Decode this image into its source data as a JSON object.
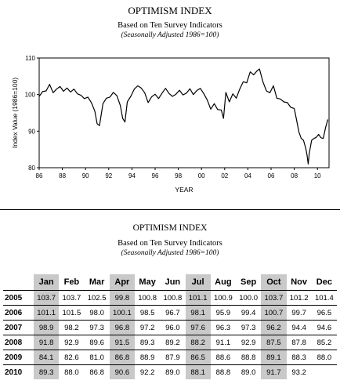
{
  "chart_title": "OPTIMISM INDEX",
  "chart_subtitle": "Based on Ten Survey Indicators",
  "chart_note": "(Seasonally Adjusted 1986=100)",
  "chart_data": {
    "type": "line",
    "xlabel": "YEAR",
    "ylabel": "Index Value (1986=100)",
    "xlim": [
      1986,
      2011
    ],
    "ylim": [
      80,
      110
    ],
    "x_ticks": [
      "86",
      "88",
      "90",
      "92",
      "94",
      "96",
      "98",
      "00",
      "02",
      "04",
      "06",
      "08",
      "10"
    ],
    "y_ticks": [
      "80",
      "90",
      "100",
      "110"
    ],
    "grid": false,
    "series": [
      {
        "x": [
          1986.0,
          1986.3,
          1986.6,
          1986.9,
          1987.2,
          1987.5,
          1987.8,
          1988.1,
          1988.4,
          1988.7,
          1989.0,
          1989.3,
          1989.6,
          1989.9,
          1990.2,
          1990.5,
          1990.8,
          1991.0,
          1991.2,
          1991.5,
          1991.8,
          1992.1,
          1992.4,
          1992.7,
          1993.0,
          1993.2,
          1993.4,
          1993.6,
          1993.9,
          1994.2,
          1994.5,
          1994.8,
          1995.1,
          1995.4,
          1995.7,
          1996.0,
          1996.3,
          1996.6,
          1996.9,
          1997.2,
          1997.5,
          1997.8,
          1998.1,
          1998.4,
          1998.7,
          1999.0,
          1999.3,
          1999.6,
          1999.9,
          2000.2,
          2000.5,
          2000.8,
          2001.1,
          2001.4,
          2001.7,
          2001.9,
          2002.1,
          2002.4,
          2002.7,
          2003.0,
          2003.3,
          2003.6,
          2003.9,
          2004.2,
          2004.5,
          2004.8,
          2005.0,
          2005.3,
          2005.6,
          2005.9,
          2006.2,
          2006.5,
          2006.8,
          2007.1,
          2007.4,
          2007.7,
          2008.0,
          2008.2,
          2008.4,
          2008.6,
          2008.8,
          2009.0,
          2009.1,
          2009.2,
          2009.3,
          2009.5,
          2009.7,
          2009.9,
          2010.1,
          2010.3,
          2010.5,
          2010.7,
          2010.9
        ],
        "y": [
          99.5,
          100.8,
          101.0,
          102.8,
          100.5,
          101.5,
          102.2,
          100.9,
          101.8,
          100.7,
          101.5,
          100.2,
          99.8,
          98.9,
          99.3,
          97.8,
          95.5,
          92.0,
          91.5,
          97.5,
          99.0,
          99.3,
          100.6,
          99.7,
          97.0,
          93.5,
          92.5,
          98.0,
          99.5,
          101.5,
          102.4,
          101.8,
          100.5,
          97.8,
          99.4,
          100.1,
          98.9,
          100.4,
          101.7,
          100.3,
          99.5,
          100.1,
          101.2,
          99.9,
          100.4,
          101.6,
          100.0,
          101.1,
          101.7,
          100.2,
          98.5,
          96.0,
          97.5,
          95.9,
          95.8,
          93.5,
          100.6,
          98.0,
          100.2,
          99.0,
          101.5,
          103.5,
          103.2,
          106.2,
          105.4,
          106.5,
          107.0,
          103.5,
          101.0,
          100.5,
          102.4,
          99.0,
          98.8,
          98.0,
          97.8,
          96.5,
          96.2,
          93.0,
          89.8,
          88.0,
          87.5,
          85.2,
          83.5,
          81.0,
          84.0,
          87.5,
          88.0,
          88.3,
          89.1,
          88.2,
          88.0,
          91.0,
          93.2
        ]
      }
    ]
  },
  "table": {
    "title": "OPTIMISM INDEX",
    "subtitle": "Based on Ten Survey Indicators",
    "note": "(Seasonally Adjusted 1986=100)",
    "months": [
      "Jan",
      "Feb",
      "Mar",
      "Apr",
      "May",
      "Jun",
      "Jul",
      "Aug",
      "Sep",
      "Oct",
      "Nov",
      "Dec"
    ],
    "rows": [
      {
        "year": "2005",
        "values": [
          "103.7",
          "103.7",
          "102.5",
          "99.8",
          "100.8",
          "100.8",
          "101.1",
          "100.9",
          "100.0",
          "103.7",
          "101.2",
          "101.4"
        ]
      },
      {
        "year": "2006",
        "values": [
          "101.1",
          "101.5",
          "98.0",
          "100.1",
          "98.5",
          "96.7",
          "98.1",
          "95.9",
          "99.4",
          "100.7",
          "99.7",
          "96.5"
        ]
      },
      {
        "year": "2007",
        "values": [
          "98.9",
          "98.2",
          "97.3",
          "96.8",
          "97.2",
          "96.0",
          "97.6",
          "96.3",
          "97.3",
          "96.2",
          "94.4",
          "94.6"
        ]
      },
      {
        "year": "2008",
        "values": [
          "91.8",
          "92.9",
          "89.6",
          "91.5",
          "89.3",
          "89.2",
          "88.2",
          "91.1",
          "92.9",
          "87.5",
          "87.8",
          "85.2"
        ]
      },
      {
        "year": "2009",
        "values": [
          "84.1",
          "82.6",
          "81.0",
          "86.8",
          "88.9",
          "87.9",
          "86.5",
          "88.6",
          "88.8",
          "89.1",
          "88.3",
          "88.0"
        ]
      },
      {
        "year": "2010",
        "values": [
          "89.3",
          "88.0",
          "86.8",
          "90.6",
          "92.2",
          "89.0",
          "88.1",
          "88.8",
          "89.0",
          "91.7",
          "93.2",
          ""
        ]
      }
    ],
    "shaded_columns": [
      "Jan",
      "Apr",
      "Jul",
      "Oct"
    ],
    "shade_color": "#c9c9c9"
  }
}
